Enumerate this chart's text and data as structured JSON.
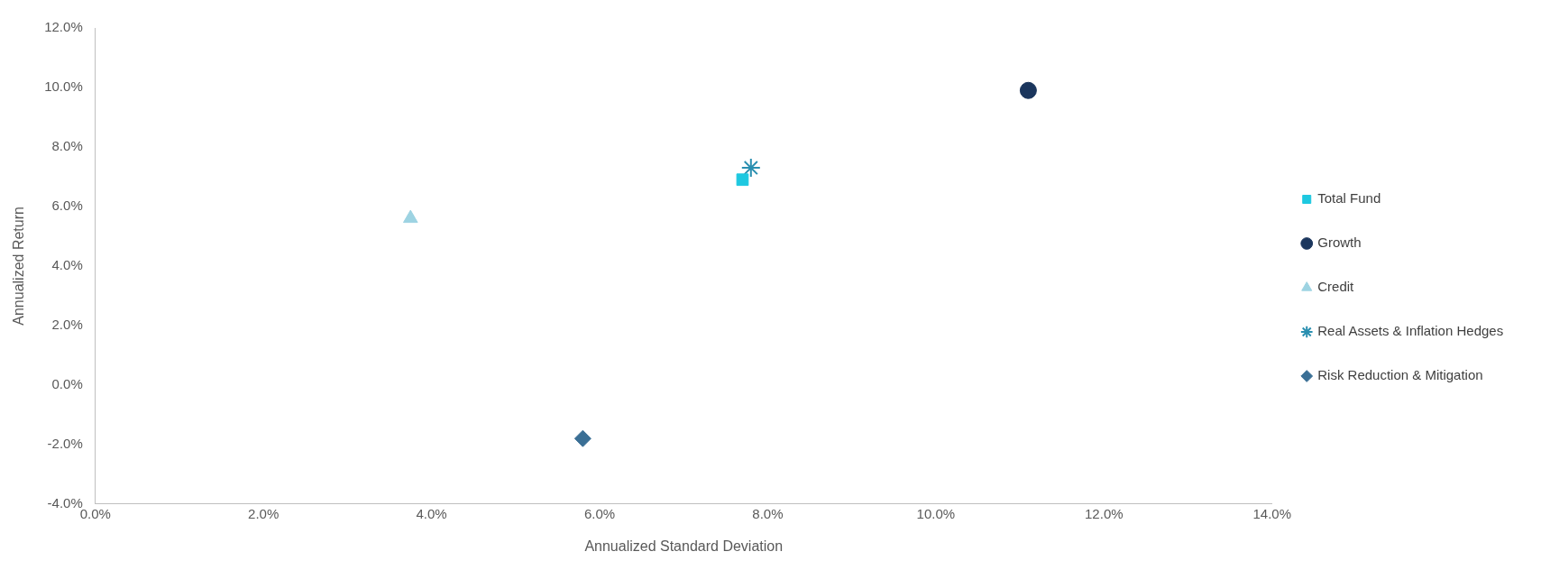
{
  "chart_data": {
    "type": "scatter",
    "xlabel": "Annualized Standard Deviation",
    "ylabel": "Annualized Return",
    "xlim": [
      0,
      14
    ],
    "xticks": [
      {
        "value": 0,
        "label": "0.0%"
      },
      {
        "value": 2,
        "label": "2.0%"
      },
      {
        "value": 4,
        "label": "4.0%"
      },
      {
        "value": 6,
        "label": "6.0%"
      },
      {
        "value": 8,
        "label": "8.0%"
      },
      {
        "value": 10,
        "label": "10.0%"
      },
      {
        "value": 12,
        "label": "12.0%"
      },
      {
        "value": 14,
        "label": "14.0%"
      }
    ],
    "ylim": [
      -4,
      12
    ],
    "yticks": [
      {
        "value": -4,
        "label": "-4.0%"
      },
      {
        "value": -2,
        "label": "-2.0%"
      },
      {
        "value": 0,
        "label": "0.0%"
      },
      {
        "value": 2,
        "label": "2.0%"
      },
      {
        "value": 4,
        "label": "4.0%"
      },
      {
        "value": 6,
        "label": "6.0%"
      },
      {
        "value": 8,
        "label": "8.0%"
      },
      {
        "value": 10,
        "label": "10.0%"
      },
      {
        "value": 12,
        "label": "12.0%"
      }
    ],
    "grid": false,
    "legend": "right",
    "series": [
      {
        "name": "Total Fund",
        "color": "#1ec8e0",
        "marker": "square",
        "x": [
          7.7
        ],
        "values": [
          6.9
        ]
      },
      {
        "name": "Growth",
        "color": "#1b365d",
        "marker": "circle",
        "x": [
          11.1
        ],
        "values": [
          9.9
        ]
      },
      {
        "name": "Credit",
        "color": "#9dd3e2",
        "marker": "triangle",
        "x": [
          3.75
        ],
        "values": [
          5.6
        ]
      },
      {
        "name": "Real Assets & Inflation Hedges",
        "color": "#2a8fb0",
        "marker": "cross",
        "x": [
          7.8
        ],
        "values": [
          7.3
        ]
      },
      {
        "name": "Risk Reduction & Mitigation",
        "color": "#3a6f95",
        "marker": "diamond",
        "x": [
          5.8
        ],
        "values": [
          -1.8
        ]
      }
    ]
  }
}
